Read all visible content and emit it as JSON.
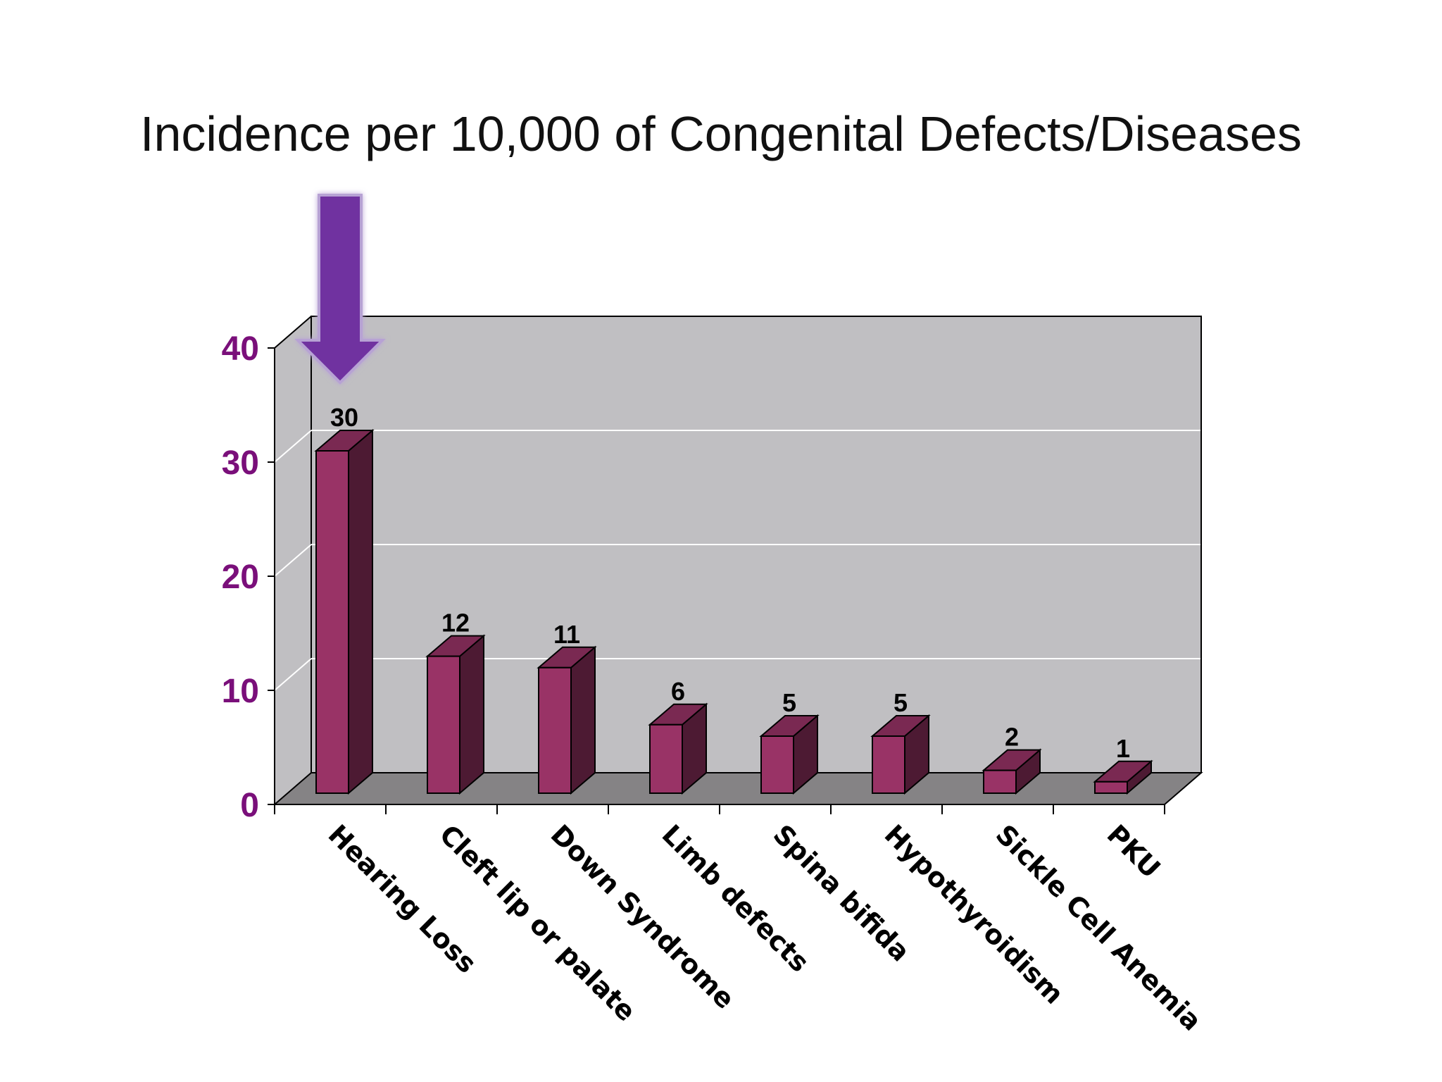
{
  "chart_data": {
    "type": "bar",
    "title": "Incidence per 10,000 of Congenital Defects/Diseases",
    "categories": [
      "Hearing Loss",
      "Cleft lip or palate",
      "Down Syndrome",
      "Limb defects",
      "Spina bifida",
      "Hypothyroidism",
      "Sickle Cell Anemia",
      "PKU"
    ],
    "values": [
      30,
      12,
      11,
      6,
      5,
      5,
      2,
      1
    ],
    "data_labels": [
      "30",
      "12",
      "11",
      "6",
      "5",
      "5",
      "2",
      "1"
    ],
    "y_ticks": [
      "0",
      "10",
      "20",
      "30",
      "40"
    ],
    "ylim": [
      0,
      40
    ],
    "xlabel": "",
    "ylabel": "",
    "grid": true,
    "style": "3d-column",
    "annotation": "arrow-pointing-to-hearing-loss",
    "colors": {
      "bar_front": "#993366",
      "bar_side": "#4d1a33",
      "bar_top": "#7a2952",
      "wall": "#c0bfc2",
      "floor": "#858385",
      "ytick_text": "#7a0f7a",
      "arrow": "#7030a0"
    }
  }
}
